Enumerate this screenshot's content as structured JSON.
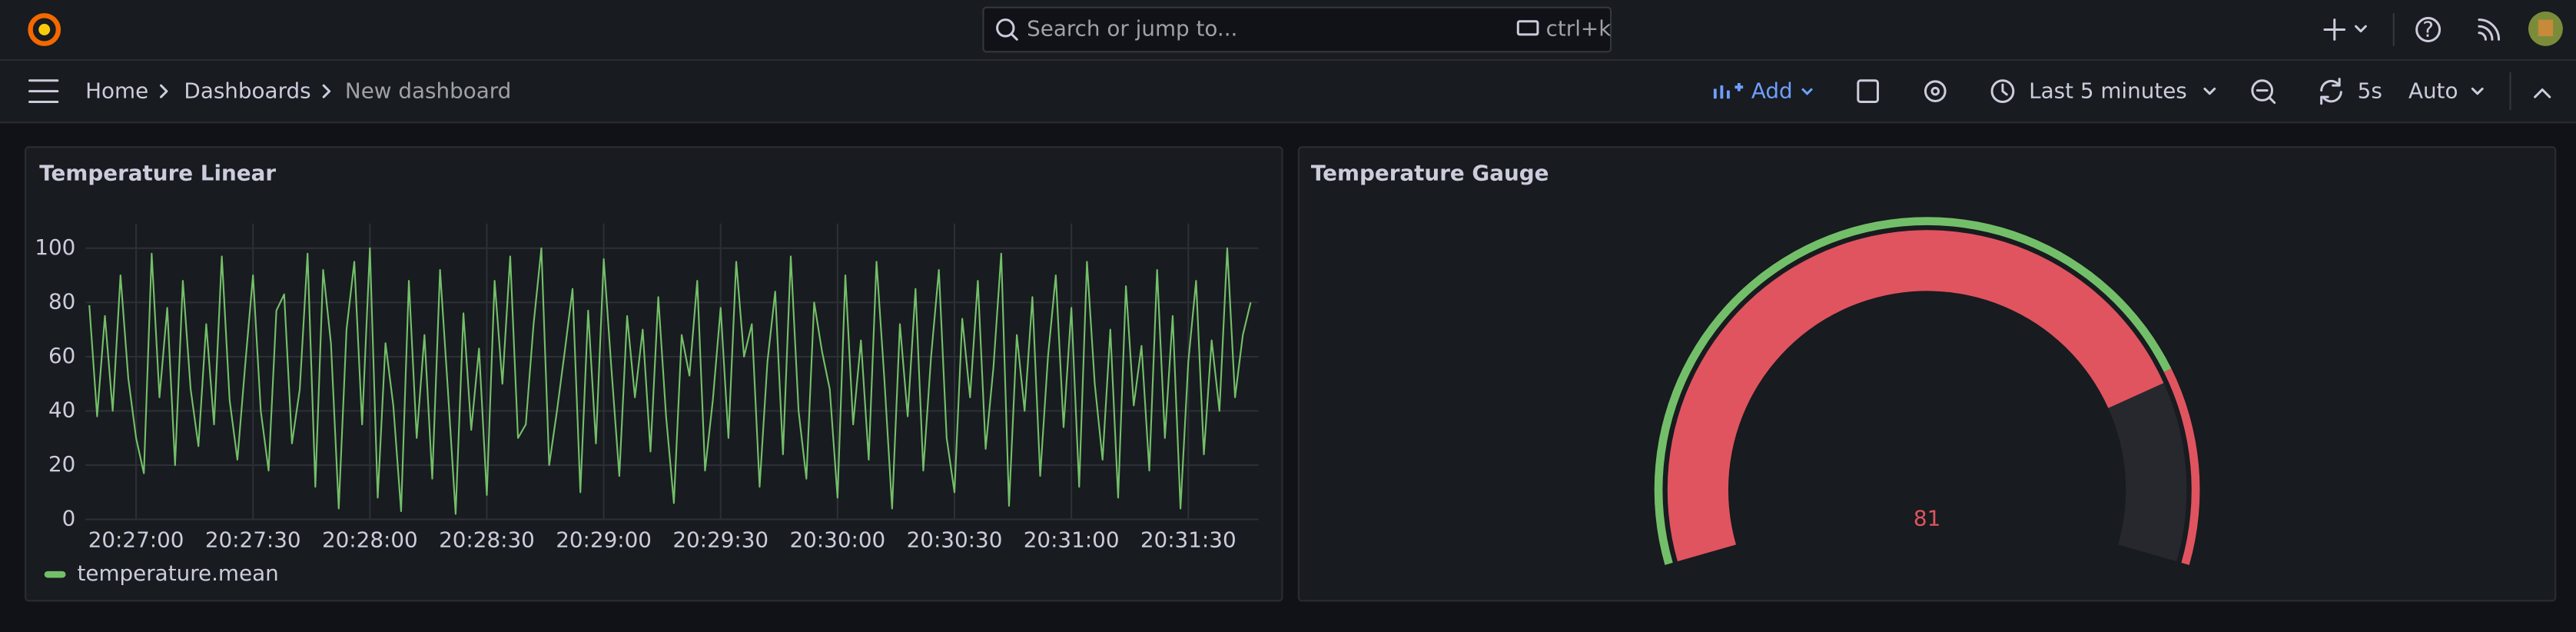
{
  "nav": {
    "search_placeholder": "Search or jump to...",
    "search_shortcut": "ctrl+k",
    "breadcrumbs": [
      "Home",
      "Dashboards",
      "New dashboard"
    ],
    "add": "Add",
    "time_range": "Last 5 minutes",
    "refresh": "5s",
    "refresh_mode": "Auto"
  },
  "chart_data": [
    {
      "type": "line",
      "title": "Temperature Linear",
      "x": [
        "20:26:48",
        "20:26:50",
        "20:26:52",
        "20:26:54",
        "20:26:56",
        "20:26:58",
        "20:27:00",
        "20:27:02",
        "20:27:04",
        "20:27:06",
        "20:27:08",
        "20:27:10",
        "20:27:12",
        "20:27:14",
        "20:27:16",
        "20:27:18",
        "20:27:20",
        "20:27:22",
        "20:27:24",
        "20:27:26",
        "20:27:28",
        "20:27:30",
        "20:27:32",
        "20:27:34",
        "20:27:36",
        "20:27:38",
        "20:27:40",
        "20:27:42",
        "20:27:44",
        "20:27:46",
        "20:27:48",
        "20:27:50",
        "20:27:52",
        "20:27:54",
        "20:27:56",
        "20:27:58",
        "20:28:00",
        "20:28:02",
        "20:28:04",
        "20:28:06",
        "20:28:08",
        "20:28:10",
        "20:28:12",
        "20:28:14",
        "20:28:16",
        "20:28:18",
        "20:28:20",
        "20:28:22",
        "20:28:24",
        "20:28:26",
        "20:28:28",
        "20:28:30",
        "20:28:32",
        "20:28:34",
        "20:28:36",
        "20:28:38",
        "20:28:40",
        "20:28:42",
        "20:28:44",
        "20:28:46",
        "20:28:48",
        "20:28:50",
        "20:28:52",
        "20:28:54",
        "20:28:56",
        "20:28:58",
        "20:29:00",
        "20:29:02",
        "20:29:04",
        "20:29:06",
        "20:29:08",
        "20:29:10",
        "20:29:12",
        "20:29:14",
        "20:29:16",
        "20:29:18",
        "20:29:20",
        "20:29:22",
        "20:29:24",
        "20:29:26",
        "20:29:28",
        "20:29:30",
        "20:29:32",
        "20:29:34",
        "20:29:36",
        "20:29:38",
        "20:29:40",
        "20:29:42",
        "20:29:44",
        "20:29:46",
        "20:29:48",
        "20:29:50",
        "20:29:52",
        "20:29:54",
        "20:29:56",
        "20:29:58",
        "20:30:00",
        "20:30:02",
        "20:30:04",
        "20:30:06",
        "20:30:08",
        "20:30:10",
        "20:30:12",
        "20:30:14",
        "20:30:16",
        "20:30:18",
        "20:30:20",
        "20:30:22",
        "20:30:24",
        "20:30:26",
        "20:30:28",
        "20:30:30",
        "20:30:32",
        "20:30:34",
        "20:30:36",
        "20:30:38",
        "20:30:40",
        "20:30:42",
        "20:30:44",
        "20:30:46",
        "20:30:48",
        "20:30:50",
        "20:30:52",
        "20:30:54",
        "20:30:56",
        "20:30:58",
        "20:31:00",
        "20:31:02",
        "20:31:04",
        "20:31:06",
        "20:31:08",
        "20:31:10",
        "20:31:12",
        "20:31:14",
        "20:31:16",
        "20:31:18",
        "20:31:20",
        "20:31:22",
        "20:31:24",
        "20:31:26",
        "20:31:28",
        "20:31:30",
        "20:31:32",
        "20:31:34",
        "20:31:36",
        "20:31:38",
        "20:31:40",
        "20:31:42",
        "20:31:44",
        "20:31:46"
      ],
      "xlim": [
        "20:26:47",
        "20:31:48"
      ],
      "xticks": [
        "20:27:00",
        "20:27:30",
        "20:28:00",
        "20:28:30",
        "20:29:00",
        "20:29:30",
        "20:30:00",
        "20:30:30",
        "20:31:00",
        "20:31:30"
      ],
      "ylim": [
        0,
        100
      ],
      "yticks": [
        0,
        20,
        40,
        60,
        80,
        100
      ],
      "grid": true,
      "series": [
        {
          "name": "temperature.mean",
          "color": "#73bf69",
          "values": [
            79,
            38,
            75,
            40,
            90,
            52,
            30,
            17,
            98,
            45,
            78,
            20,
            88,
            48,
            27,
            72,
            35,
            97,
            44,
            22,
            57,
            90,
            40,
            18,
            77,
            83,
            28,
            48,
            98,
            12,
            92,
            65,
            4,
            70,
            95,
            35,
            100,
            8,
            65,
            42,
            3,
            88,
            30,
            68,
            15,
            92,
            48,
            2,
            76,
            33,
            63,
            9,
            88,
            50,
            97,
            30,
            35,
            72,
            100,
            20,
            40,
            62,
            85,
            10,
            77,
            28,
            96,
            55,
            16,
            75,
            45,
            70,
            25,
            82,
            38,
            6,
            68,
            53,
            88,
            18,
            44,
            78,
            30,
            95,
            60,
            72,
            12,
            58,
            84,
            24,
            97,
            40,
            15,
            80,
            62,
            48,
            8,
            90,
            35,
            66,
            22,
            95,
            52,
            4,
            72,
            38,
            85,
            18,
            60,
            92,
            30,
            10,
            74,
            45,
            88,
            26,
            56,
            98,
            5,
            68,
            40,
            82,
            16,
            60,
            90,
            34,
            78,
            12,
            95,
            50,
            22,
            70,
            8,
            86,
            42,
            64,
            18,
            92,
            30,
            75,
            4,
            58,
            88,
            24,
            66,
            40,
            100,
            45,
            68,
            80
          ]
        }
      ]
    },
    {
      "type": "gauge",
      "title": "Temperature Gauge",
      "value": 81,
      "min": 0,
      "max": 100,
      "thresholds": [
        {
          "value": 0,
          "color": "#73bf69"
        },
        {
          "value": 80,
          "color": "#e0545f"
        }
      ]
    }
  ]
}
